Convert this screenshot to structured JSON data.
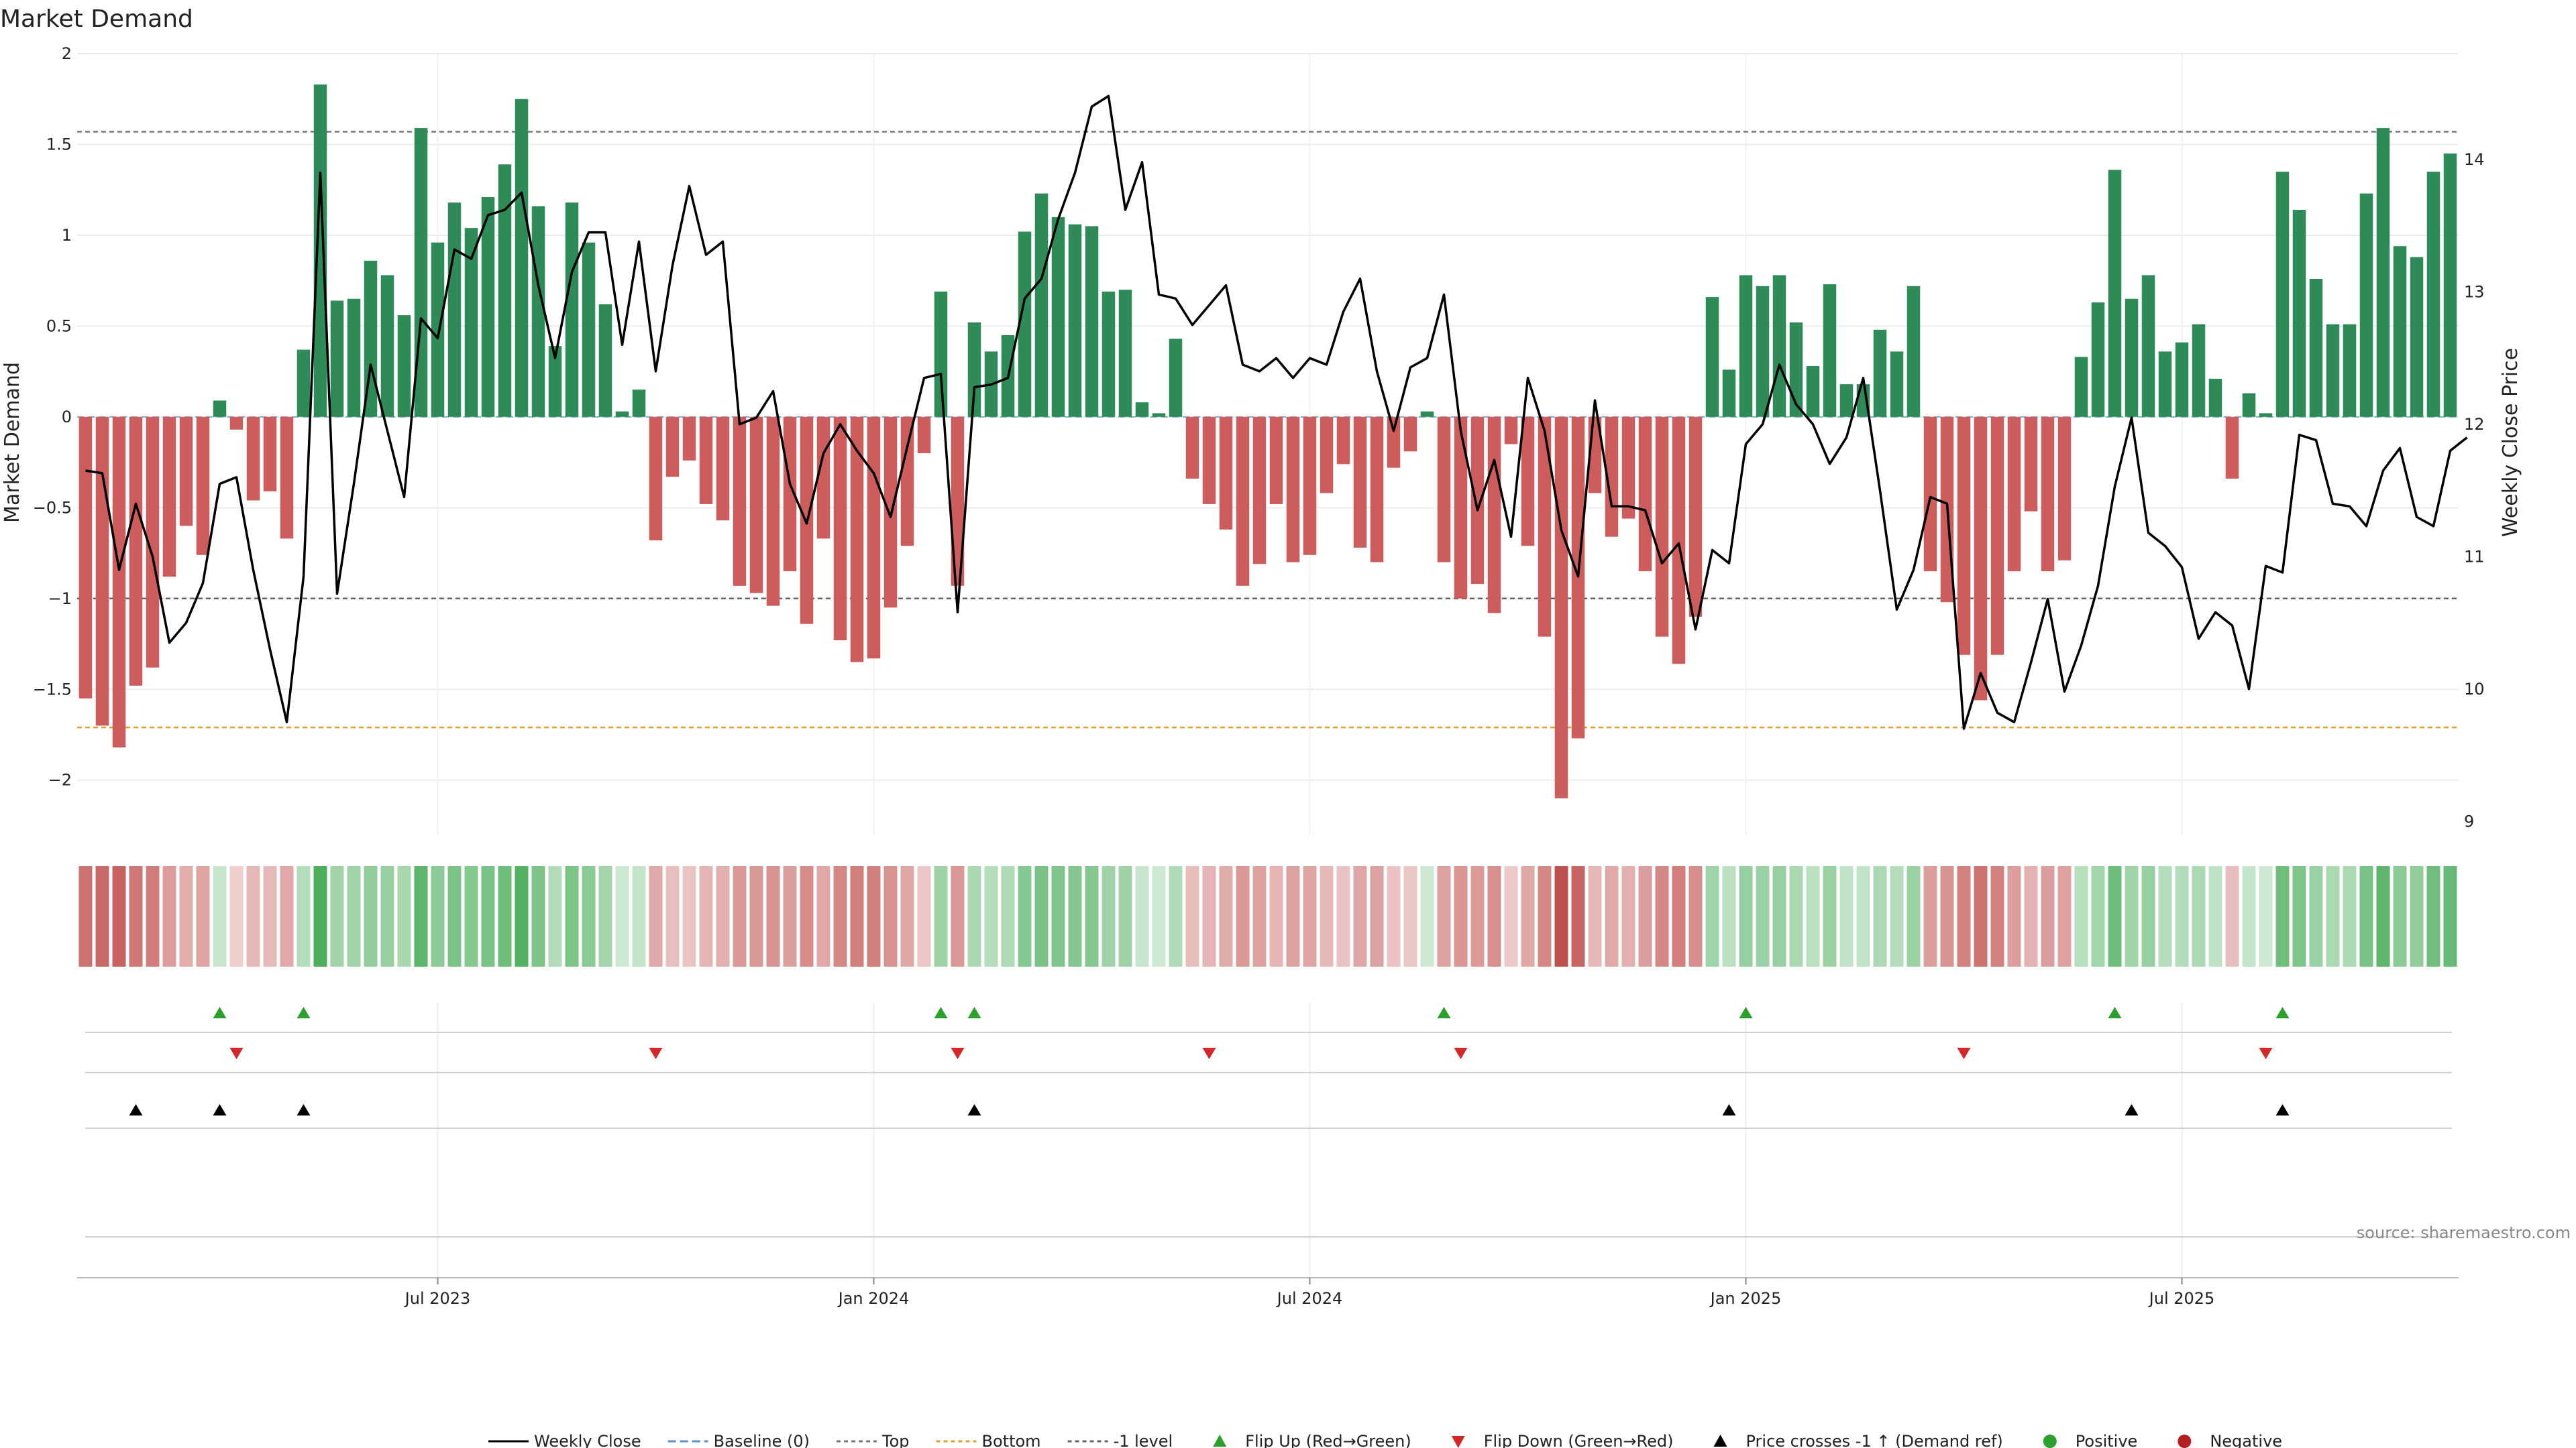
{
  "title": "Market Demand",
  "source": "source: sharemaestro.com",
  "colors": {
    "positive": "#2e8b57",
    "negative": "#cd5c5c",
    "price": "#000000",
    "top": "#777777",
    "bottom": "#e0a030",
    "minus1": "#666666",
    "flip_up": "#2ca02c",
    "flip_down": "#d62728",
    "cross": "#000000",
    "dot_pos": "#2ca02c",
    "dot_neg": "#b22222"
  },
  "chart_data": {
    "type": "bar",
    "title": "Market Demand",
    "ylabel": "Market Demand",
    "y2label": "Weekly Close Price",
    "ylim": [
      -2.3,
      2.0
    ],
    "y2lim": [
      8.9,
      14.8
    ],
    "yticks": [
      2,
      1.5,
      1,
      0.5,
      0,
      -0.5,
      -1,
      -1.5,
      -2
    ],
    "ytick_labels": [
      "2",
      "1.5",
      "1",
      "0.5",
      "0",
      "−0.5",
      "−1",
      "−1.5",
      "−2"
    ],
    "y2ticks": [
      9,
      10,
      11,
      12,
      13,
      14
    ],
    "y2tick_labels": [
      "9",
      "10",
      "11",
      "12",
      "13",
      "14"
    ],
    "x_tick_labels": [
      {
        "index": 21,
        "label": "Jul 2023"
      },
      {
        "index": 47,
        "label": "Jan 2024"
      },
      {
        "index": 73,
        "label": "Jul 2024"
      },
      {
        "index": 99,
        "label": "Jan 2025"
      },
      {
        "index": 125,
        "label": "Jul 2025"
      }
    ],
    "reference_lines": {
      "top": 1.57,
      "bottom": -1.71,
      "minus1": -1.0,
      "baseline": 0
    },
    "demand": [
      -1.55,
      -1.7,
      -1.82,
      -1.48,
      -1.38,
      -0.88,
      -0.6,
      -0.76,
      0.09,
      -0.07,
      -0.46,
      -0.41,
      -0.67,
      0.37,
      1.83,
      0.64,
      0.65,
      0.86,
      0.78,
      0.56,
      1.59,
      0.96,
      1.18,
      1.04,
      1.21,
      1.39,
      1.75,
      1.16,
      0.39,
      1.18,
      0.96,
      0.62,
      0.03,
      0.15,
      -0.68,
      -0.33,
      -0.24,
      -0.48,
      -0.57,
      -0.93,
      -0.97,
      -1.04,
      -0.85,
      -1.14,
      -0.67,
      -1.23,
      -1.35,
      -1.33,
      -1.05,
      -0.71,
      -0.2,
      0.69,
      -0.93,
      0.52,
      0.36,
      0.45,
      1.02,
      1.23,
      1.1,
      1.06,
      1.05,
      0.69,
      0.7,
      0.08,
      0.02,
      0.43,
      -0.34,
      -0.48,
      -0.62,
      -0.93,
      -0.81,
      -0.48,
      -0.8,
      -0.76,
      -0.42,
      -0.26,
      -0.72,
      -0.8,
      -0.28,
      -0.19,
      0.03,
      -0.8,
      -1.0,
      -0.92,
      -1.08,
      -0.15,
      -0.71,
      -1.21,
      -2.1,
      -1.77,
      -0.42,
      -0.66,
      -0.56,
      -0.85,
      -1.21,
      -1.36,
      -1.1,
      0.66,
      0.26,
      0.78,
      0.72,
      0.78,
      0.52,
      0.28,
      0.73,
      0.18,
      0.18,
      0.48,
      0.36,
      0.72,
      -0.85,
      -1.02,
      -1.31,
      -1.56,
      -1.31,
      -0.85,
      -0.52,
      -0.85,
      -0.79,
      0.33,
      0.63,
      1.36,
      0.65,
      0.78,
      0.36,
      0.41,
      0.51,
      0.21,
      -0.34,
      0.13,
      0.02,
      1.35,
      1.14,
      0.76,
      0.51,
      0.51,
      1.23,
      1.59,
      0.94,
      0.88,
      1.35,
      1.45
    ],
    "price": [
      11.65,
      11.63,
      10.9,
      11.4,
      11.0,
      10.35,
      10.5,
      10.8,
      11.55,
      11.6,
      10.9,
      10.3,
      9.75,
      10.85,
      13.9,
      10.72,
      11.55,
      12.45,
      11.95,
      11.45,
      12.8,
      12.65,
      13.32,
      13.25,
      13.58,
      13.62,
      13.75,
      13.05,
      12.5,
      13.15,
      13.45,
      13.45,
      12.6,
      13.38,
      12.4,
      13.2,
      13.8,
      13.28,
      13.38,
      12.0,
      12.05,
      12.25,
      11.55,
      11.25,
      11.78,
      12.0,
      11.8,
      11.63,
      11.3,
      11.83,
      12.35,
      12.38,
      10.58,
      12.28,
      12.3,
      12.35,
      12.95,
      13.1,
      13.55,
      13.9,
      14.4,
      14.48,
      13.62,
      13.98,
      12.98,
      12.95,
      12.75,
      12.9,
      13.05,
      12.45,
      12.4,
      12.5,
      12.35,
      12.5,
      12.45,
      12.85,
      13.1,
      12.4,
      11.95,
      12.43,
      12.5,
      12.98,
      11.95,
      11.35,
      11.73,
      11.15,
      12.35,
      11.95,
      11.2,
      10.85,
      12.18,
      11.38,
      11.38,
      11.35,
      10.95,
      11.1,
      10.45,
      11.05,
      10.95,
      11.85,
      12.0,
      12.45,
      12.15,
      12.0,
      11.7,
      11.9,
      12.35,
      11.5,
      10.6,
      10.9,
      11.45,
      11.4,
      9.7,
      10.12,
      9.82,
      9.75,
      10.2,
      10.68,
      9.98,
      10.33,
      10.78,
      11.53,
      12.05,
      11.18,
      11.08,
      10.92,
      10.38,
      10.58,
      10.48,
      10.0,
      10.93,
      10.88,
      11.92,
      11.88,
      11.4,
      11.38,
      11.23,
      11.65,
      11.82,
      11.3,
      11.23,
      11.8,
      11.9
    ],
    "flip_up_idx": [
      8,
      13,
      51,
      53,
      81,
      99,
      121,
      131
    ],
    "flip_down_idx": [
      9,
      34,
      52,
      67,
      82,
      112,
      130
    ],
    "cross_up_idx": [
      3,
      8,
      13,
      53,
      98,
      122,
      131
    ],
    "legend": [
      {
        "key": "line",
        "label": "Weekly Close"
      },
      {
        "key": "baseline",
        "label": "Baseline (0)"
      },
      {
        "key": "top",
        "label": "Top"
      },
      {
        "key": "bottom",
        "label": "Bottom"
      },
      {
        "key": "minus1",
        "label": "-1 level"
      },
      {
        "key": "flip_up",
        "label": "Flip Up (Red→Green)"
      },
      {
        "key": "flip_down",
        "label": "Flip Down (Green→Red)"
      },
      {
        "key": "cross",
        "label": "Price crosses -1 ↑ (Demand ref)"
      },
      {
        "key": "dot_pos",
        "label": "Positive"
      },
      {
        "key": "dot_neg",
        "label": "Negative"
      }
    ]
  }
}
